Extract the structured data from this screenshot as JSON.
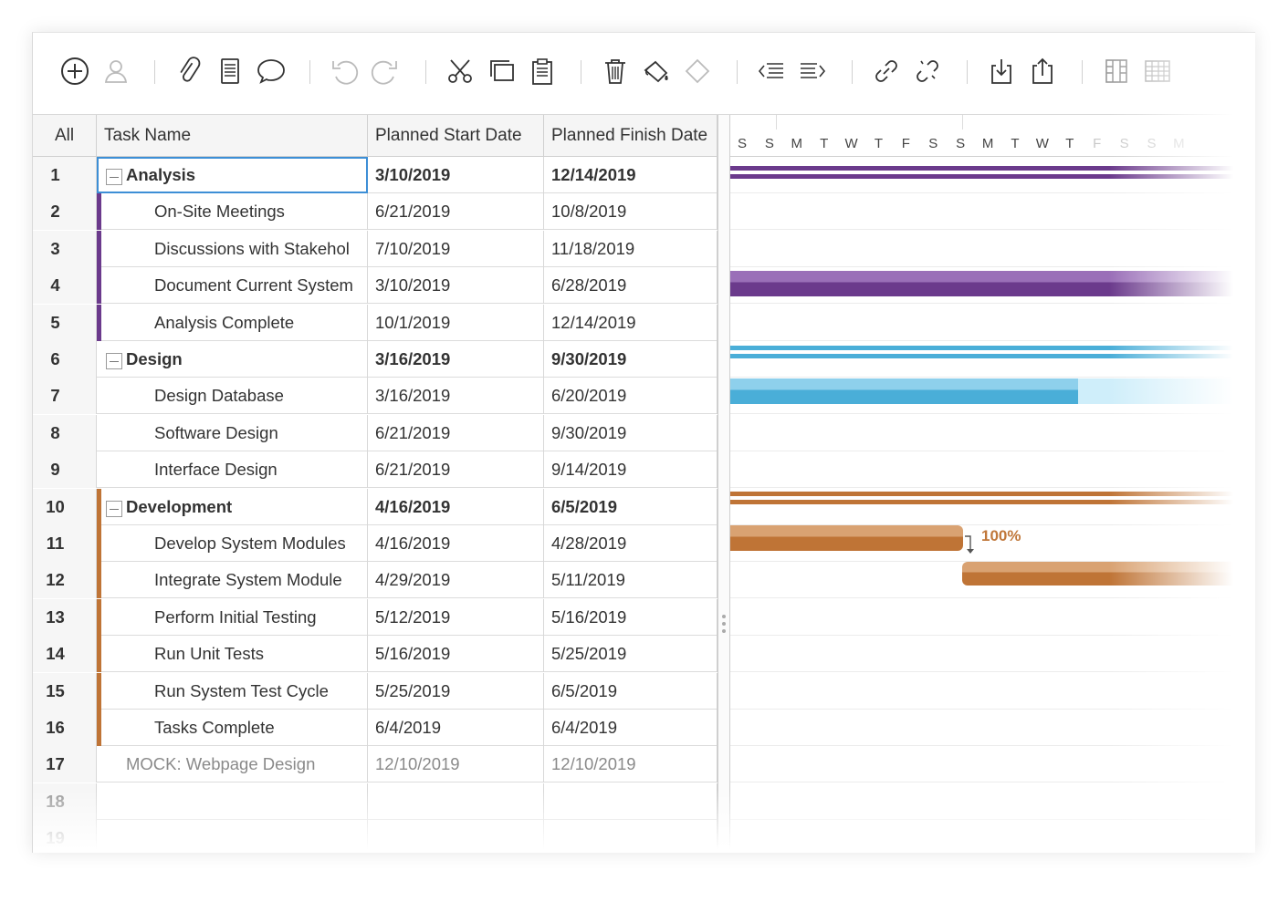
{
  "colors": {
    "analysis": "#6b3a8c",
    "design": "#4aaed8",
    "development": "#bf7436",
    "selection": "#3d8fd6"
  },
  "toolbar": {
    "buttons": [
      {
        "name": "add-task-icon"
      },
      {
        "name": "assign-user-icon"
      },
      {
        "name": "attachment-icon"
      },
      {
        "name": "notes-icon"
      },
      {
        "name": "comment-icon"
      },
      {
        "name": "undo-icon"
      },
      {
        "name": "redo-icon"
      },
      {
        "name": "cut-icon"
      },
      {
        "name": "copy-icon"
      },
      {
        "name": "paste-icon"
      },
      {
        "name": "delete-icon"
      },
      {
        "name": "paint-bucket-icon"
      },
      {
        "name": "milestone-icon"
      },
      {
        "name": "outdent-icon"
      },
      {
        "name": "indent-icon"
      },
      {
        "name": "link-icon"
      },
      {
        "name": "unlink-icon"
      },
      {
        "name": "import-icon"
      },
      {
        "name": "export-icon"
      },
      {
        "name": "columns-icon"
      },
      {
        "name": "grid-icon"
      }
    ]
  },
  "grid": {
    "headers": {
      "all": "All",
      "task_name": "Task Name",
      "planned_start": "Planned Start Date",
      "planned_finish": "Planned Finish Date"
    },
    "rows": [
      {
        "num": "1",
        "name": "Analysis",
        "start": "3/10/2019",
        "finish": "12/14/2019",
        "group": "analysis",
        "summary": true
      },
      {
        "num": "2",
        "name": "On-Site Meetings",
        "start": "6/21/2019",
        "finish": "10/8/2019",
        "group": "analysis"
      },
      {
        "num": "3",
        "name": "Discussions with Stakehol",
        "start": "7/10/2019",
        "finish": "11/18/2019",
        "group": "analysis"
      },
      {
        "num": "4",
        "name": "Document Current System",
        "start": "3/10/2019",
        "finish": "6/28/2019",
        "group": "analysis"
      },
      {
        "num": "5",
        "name": "Analysis Complete",
        "start": "10/1/2019",
        "finish": "12/14/2019",
        "group": "analysis"
      },
      {
        "num": "6",
        "name": "Design",
        "start": "3/16/2019",
        "finish": "9/30/2019",
        "group": "design",
        "summary": true
      },
      {
        "num": "7",
        "name": "Design Database",
        "start": "3/16/2019",
        "finish": "6/20/2019",
        "group": "design"
      },
      {
        "num": "8",
        "name": "Software Design",
        "start": "6/21/2019",
        "finish": "9/30/2019",
        "group": "design"
      },
      {
        "num": "9",
        "name": "Interface Design",
        "start": "6/21/2019",
        "finish": "9/14/2019",
        "group": "design"
      },
      {
        "num": "10",
        "name": "Development",
        "start": "4/16/2019",
        "finish": "6/5/2019",
        "group": "development",
        "summary": true
      },
      {
        "num": "11",
        "name": "Develop System Modules",
        "start": "4/16/2019",
        "finish": "4/28/2019",
        "group": "development"
      },
      {
        "num": "12",
        "name": "Integrate System Module",
        "start": "4/29/2019",
        "finish": "5/11/2019",
        "group": "development"
      },
      {
        "num": "13",
        "name": "Perform Initial Testing",
        "start": "5/12/2019",
        "finish": "5/16/2019",
        "group": "development"
      },
      {
        "num": "14",
        "name": "Run Unit Tests",
        "start": "5/16/2019",
        "finish": "5/25/2019",
        "group": "development"
      },
      {
        "num": "15",
        "name": "Run System Test Cycle",
        "start": "5/25/2019",
        "finish": "6/5/2019",
        "group": "development"
      },
      {
        "num": "16",
        "name": "Tasks Complete",
        "start": "6/4/2019",
        "finish": "6/4/2019",
        "group": "development"
      },
      {
        "num": "17",
        "name": "MOCK: Webpage Design",
        "start": "12/10/2019",
        "finish": "12/10/2019",
        "group": "mock"
      },
      {
        "num": "18",
        "name": "",
        "start": "",
        "finish": "",
        "group": "empty"
      },
      {
        "num": "19",
        "name": "",
        "start": "",
        "finish": "",
        "group": "empty"
      }
    ]
  },
  "gantt": {
    "days": [
      "S",
      "S",
      "M",
      "T",
      "W",
      "T",
      "F",
      "S",
      "S",
      "M",
      "T",
      "W",
      "T",
      "F",
      "S",
      "S",
      "M"
    ],
    "progress_label": "100%"
  }
}
